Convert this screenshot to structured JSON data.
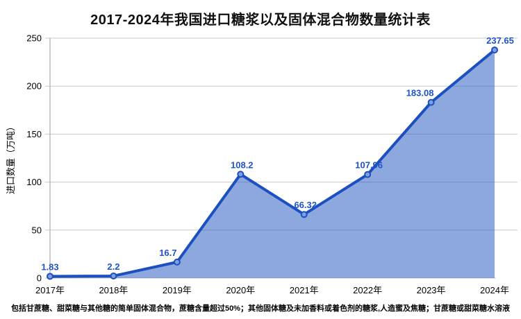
{
  "footnote": "包括甘蔗糖、甜菜糖与其他糖的简单固体混合物，蔗糖含量超过50%；其他固体糖及未加香料或着色剂的糖浆,人造蜜及焦糖；甘蔗糖或甜菜糖水溶液",
  "chart_data": {
    "type": "area",
    "title": "2017-2024年我国进口糖浆以及固体混合物数量统计表",
    "categories": [
      "2017年",
      "2018年",
      "2019年",
      "2020年",
      "2021年",
      "2022年",
      "2023年",
      "2024年"
    ],
    "values": [
      1.83,
      2.2,
      16.7,
      108.2,
      66.32,
      107.96,
      183.08,
      237.65
    ],
    "value_labels": [
      "1.83",
      "2.2",
      "16.7",
      "108.2",
      "66.32",
      "107.96",
      "183.08",
      "237.65"
    ],
    "xlabel": "",
    "ylabel": "进口数量（万吨）",
    "ylim": [
      0,
      250
    ],
    "yticks": [
      0,
      50,
      100,
      150,
      200,
      250
    ],
    "grid": "horizontal",
    "legend": "none",
    "colors": {
      "line": "#1c4fbf",
      "fill": "#8aa5e2",
      "fill_opacity": 0.5,
      "marker_fill": "#7f9fdd",
      "value_label": "#1f53c5",
      "gridline": "#c9c9c9",
      "axis": "#9a9a9a",
      "title_text": "#111111",
      "tick_text": "#000000"
    }
  }
}
